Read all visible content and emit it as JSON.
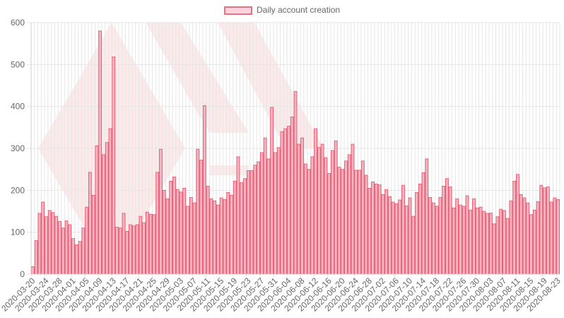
{
  "legend": {
    "label": "Daily account creation"
  },
  "colors": {
    "bar_fill": "#f7b3c0",
    "bar_stroke": "#e34d66",
    "grid": "#e6e6e6",
    "watermark": "#fbe3e3"
  },
  "chart_data": {
    "type": "bar",
    "series": [
      {
        "name": "Daily account creation"
      }
    ],
    "start_date": "2020-03-20",
    "label_every_days": 4,
    "ylim": [
      0,
      600
    ],
    "yticks": [
      0,
      100,
      200,
      300,
      400,
      500,
      600
    ],
    "grid": true,
    "legend_position": "top-center",
    "values": [
      18,
      80,
      145,
      172,
      137,
      152,
      147,
      138,
      126,
      110,
      127,
      118,
      85,
      70,
      78,
      110,
      160,
      243,
      188,
      306,
      580,
      285,
      314,
      347,
      518,
      112,
      110,
      145,
      102,
      118,
      115,
      118,
      138,
      123,
      148,
      143,
      142,
      243,
      298,
      200,
      180,
      222,
      232,
      202,
      196,
      205,
      162,
      183,
      170,
      298,
      272,
      402,
      210,
      180,
      175,
      165,
      182,
      178,
      195,
      188,
      222,
      280,
      218,
      228,
      247,
      247,
      260,
      268,
      290,
      325,
      275,
      398,
      290,
      302,
      340,
      347,
      353,
      375,
      436,
      310,
      325,
      263,
      250,
      280,
      347,
      302,
      310,
      278,
      240,
      295,
      318,
      255,
      250,
      270,
      285,
      310,
      248,
      248,
      270,
      236,
      205,
      220,
      215,
      213,
      190,
      202,
      185,
      172,
      168,
      177,
      212,
      163,
      182,
      138,
      195,
      215,
      242,
      275,
      183,
      170,
      162,
      183,
      210,
      228,
      208,
      158,
      180,
      165,
      162,
      187,
      153,
      180,
      158,
      160,
      150,
      145,
      146,
      120,
      137,
      155,
      152,
      133,
      175,
      222,
      238,
      190,
      182,
      170,
      142,
      153,
      173,
      212,
      206,
      208,
      172,
      182,
      178
    ],
    "x_tick_labels": [
      "2020-03-20",
      "2020-03-24",
      "2020-03-28",
      "2020-04-01",
      "2020-04-05",
      "2020-04-09",
      "2020-04-13",
      "2020-04-17",
      "2020-04-21",
      "2020-04-25",
      "2020-04-29",
      "2020-05-03",
      "2020-05-07",
      "2020-05-11",
      "2020-05-15",
      "2020-05-19",
      "2020-05-23",
      "2020-05-27",
      "2020-05-31",
      "2020-06-04",
      "2020-06-08",
      "2020-06-12",
      "2020-06-16",
      "2020-06-20",
      "2020-06-24",
      "2020-06-28",
      "2020-07-02",
      "2020-07-06",
      "2020-07-10",
      "2020-07-14",
      "2020-07-18",
      "2020-07-22",
      "2020-07-26",
      "2020-07-30",
      "2020-08-03",
      "2020-08-07",
      "2020-08-11",
      "2020-08-15",
      "2020-08-19",
      "2020-08-23"
    ]
  }
}
